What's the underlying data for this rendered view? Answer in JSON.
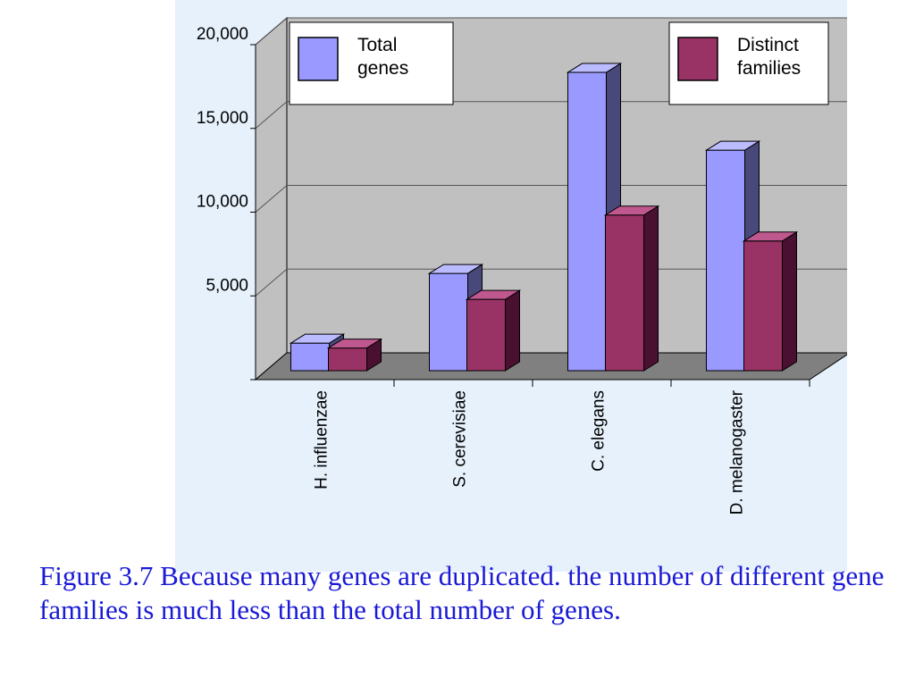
{
  "chart_data": {
    "type": "bar",
    "categories": [
      "H. influenzae",
      "S. cerevisiae",
      "C. elegans",
      "D. melanogaster"
    ],
    "series": [
      {
        "name": "Total genes",
        "values": [
          1700,
          6000,
          18400,
          13600
        ]
      },
      {
        "name": "Distinct families",
        "values": [
          1400,
          4400,
          9600,
          8000
        ]
      }
    ],
    "ylim": [
      0,
      20000
    ],
    "yticks": [
      {
        "value": 5000,
        "label": "5,000"
      },
      {
        "value": 10000,
        "label": "10,000"
      },
      {
        "value": 15000,
        "label": "15,000"
      },
      {
        "value": 20000,
        "label": "20,000"
      }
    ],
    "legend": [
      {
        "line1": "Total",
        "line2": "genes",
        "position": "top-left"
      },
      {
        "line1": "Distinct",
        "line2": "families",
        "position": "top-right"
      }
    ],
    "colors": {
      "total_front": "#9999ff",
      "total_side": "#48487a",
      "total_top": "#bbbbff",
      "families_front": "#993366",
      "families_side": "#4a1030",
      "families_top": "#c05890",
      "wall": "#c0c0c0",
      "floor": "#808080",
      "panel": "#e6f1fc"
    },
    "grid": true,
    "three_d": true
  },
  "caption": "Figure 3.7 Because many genes are duplicated. the number of different gene families is much less than the total number of genes."
}
